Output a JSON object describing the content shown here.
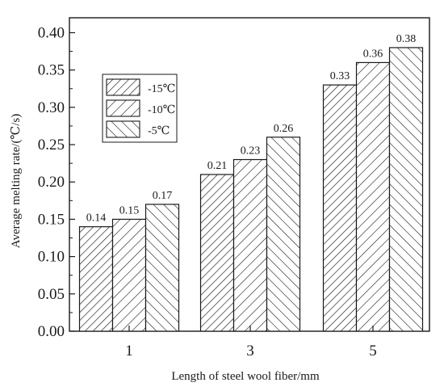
{
  "chart_data": {
    "type": "bar",
    "xlabel": "Length of steel wool fiber/mm",
    "ylabel": "Average melting rate/(℃/s)",
    "categories": [
      "1",
      "3",
      "5"
    ],
    "series": [
      {
        "name": "-15℃",
        "values": [
          0.14,
          0.21,
          0.33
        ],
        "labels": [
          "0.14",
          "0.21",
          "0.33"
        ],
        "hatch": "diagonal-up"
      },
      {
        "name": "-10℃",
        "values": [
          0.15,
          0.23,
          0.36
        ],
        "labels": [
          "0.15",
          "0.23",
          "0.36"
        ],
        "hatch": "diagonal-up"
      },
      {
        "name": "-5℃",
        "values": [
          0.17,
          0.26,
          0.38
        ],
        "labels": [
          "0.17",
          "0.26",
          "0.38"
        ],
        "hatch": "diagonal-down"
      }
    ],
    "ylim": [
      0.0,
      0.42
    ],
    "yticks": [
      "0.00",
      "0.05",
      "0.10",
      "0.15",
      "0.20",
      "0.25",
      "0.30",
      "0.35",
      "0.40"
    ],
    "legend_position": "top-left",
    "grid": false,
    "colors": {
      "bar_fill": "#ffffff",
      "stroke": "#1a1a1a"
    }
  }
}
